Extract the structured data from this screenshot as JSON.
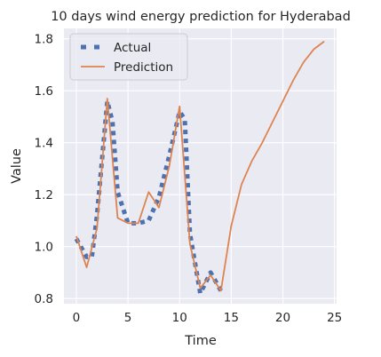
{
  "chart_data": {
    "type": "line",
    "title": "10 days wind energy prediction for Hyderabad",
    "xlabel": "Time",
    "ylabel": "Value",
    "xlim": [
      -1.2,
      25.2
    ],
    "ylim": [
      0.78,
      1.84
    ],
    "xticks": [
      0,
      5,
      10,
      15,
      20,
      25
    ],
    "yticks": [
      0.8,
      1.0,
      1.2,
      1.4,
      1.6,
      1.8
    ],
    "ytick_labels": [
      "0.8",
      "1.0",
      "1.2",
      "1.4",
      "1.6",
      "1.8"
    ],
    "grid": true,
    "legend_position": "top-left",
    "background_color": "#eaeaf2",
    "series": [
      {
        "name": "Actual",
        "style": "dotted-thick",
        "color": "#4c72b0",
        "x": [
          0,
          1,
          1.5,
          2,
          3,
          3.5,
          4,
          5,
          6,
          7,
          8,
          9,
          10,
          10.5,
          11,
          12,
          13,
          14
        ],
        "y": [
          1.03,
          0.96,
          0.96,
          1.12,
          1.56,
          1.48,
          1.21,
          1.09,
          1.09,
          1.1,
          1.19,
          1.35,
          1.52,
          1.49,
          1.05,
          0.82,
          0.9,
          0.83
        ]
      },
      {
        "name": "Prediction",
        "style": "solid",
        "color": "#dd8452",
        "x": [
          0,
          1,
          2,
          3,
          4,
          5,
          6,
          7,
          8,
          9,
          10,
          11,
          12,
          13,
          14,
          15,
          16,
          17,
          18,
          19,
          20,
          21,
          22,
          23,
          24
        ],
        "y": [
          1.04,
          0.92,
          1.07,
          1.57,
          1.11,
          1.09,
          1.09,
          1.21,
          1.15,
          1.31,
          1.54,
          1.01,
          0.84,
          0.89,
          0.83,
          1.08,
          1.24,
          1.33,
          1.4,
          1.48,
          1.56,
          1.64,
          1.71,
          1.76,
          1.79
        ]
      }
    ]
  }
}
